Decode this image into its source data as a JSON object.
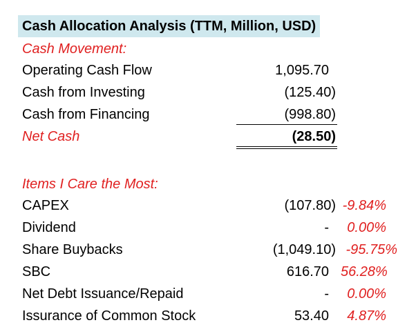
{
  "title": "Cash Allocation Analysis (TTM, Million, USD)",
  "cash_movement": {
    "heading": "Cash Movement:",
    "rows": [
      {
        "label": "Operating Cash Flow",
        "value": "1,095.70"
      },
      {
        "label": "Cash from Investing",
        "value": "(125.40)"
      },
      {
        "label": "Cash from Financing",
        "value": "(998.80)"
      }
    ],
    "net": {
      "label": "Net Cash",
      "value": "(28.50)"
    }
  },
  "items": {
    "heading": "Items I Care the Most:",
    "rows": [
      {
        "label": "CAPEX",
        "value": "(107.80)",
        "pct": "-9.84%"
      },
      {
        "label": "Dividend",
        "value": "-",
        "pct": "0.00%"
      },
      {
        "label": "Share Buybacks",
        "value": "(1,049.10)",
        "pct": "-95.75%"
      },
      {
        "label": "SBC",
        "value": "616.70",
        "pct": "56.28%"
      },
      {
        "label": "Net Debt Issuance/Repaid",
        "value": "-",
        "pct": "0.00%"
      },
      {
        "label": "Issurance of Common Stock",
        "value": "53.40",
        "pct": "4.87%"
      }
    ]
  },
  "colors": {
    "title_bg": "#cfe8ee",
    "accent_red": "#e02020"
  }
}
